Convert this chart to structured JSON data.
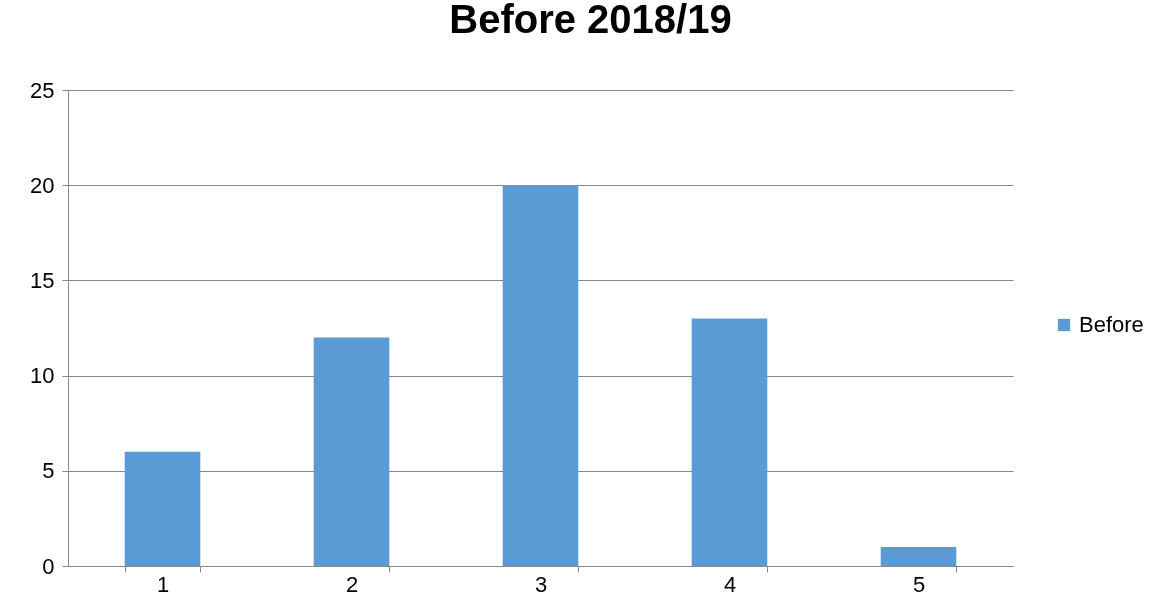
{
  "chart_data": {
    "type": "bar",
    "title": "Before 2018/19",
    "categories": [
      "1",
      "2",
      "3",
      "4",
      "5"
    ],
    "series": [
      {
        "name": "Before",
        "color": "#5b9bd5",
        "values": [
          6,
          12,
          20,
          13,
          1
        ]
      }
    ],
    "ylim": [
      0,
      25
    ],
    "yticks": [
      0,
      5,
      10,
      15,
      20,
      25
    ],
    "grid": "y",
    "legend": "right"
  }
}
